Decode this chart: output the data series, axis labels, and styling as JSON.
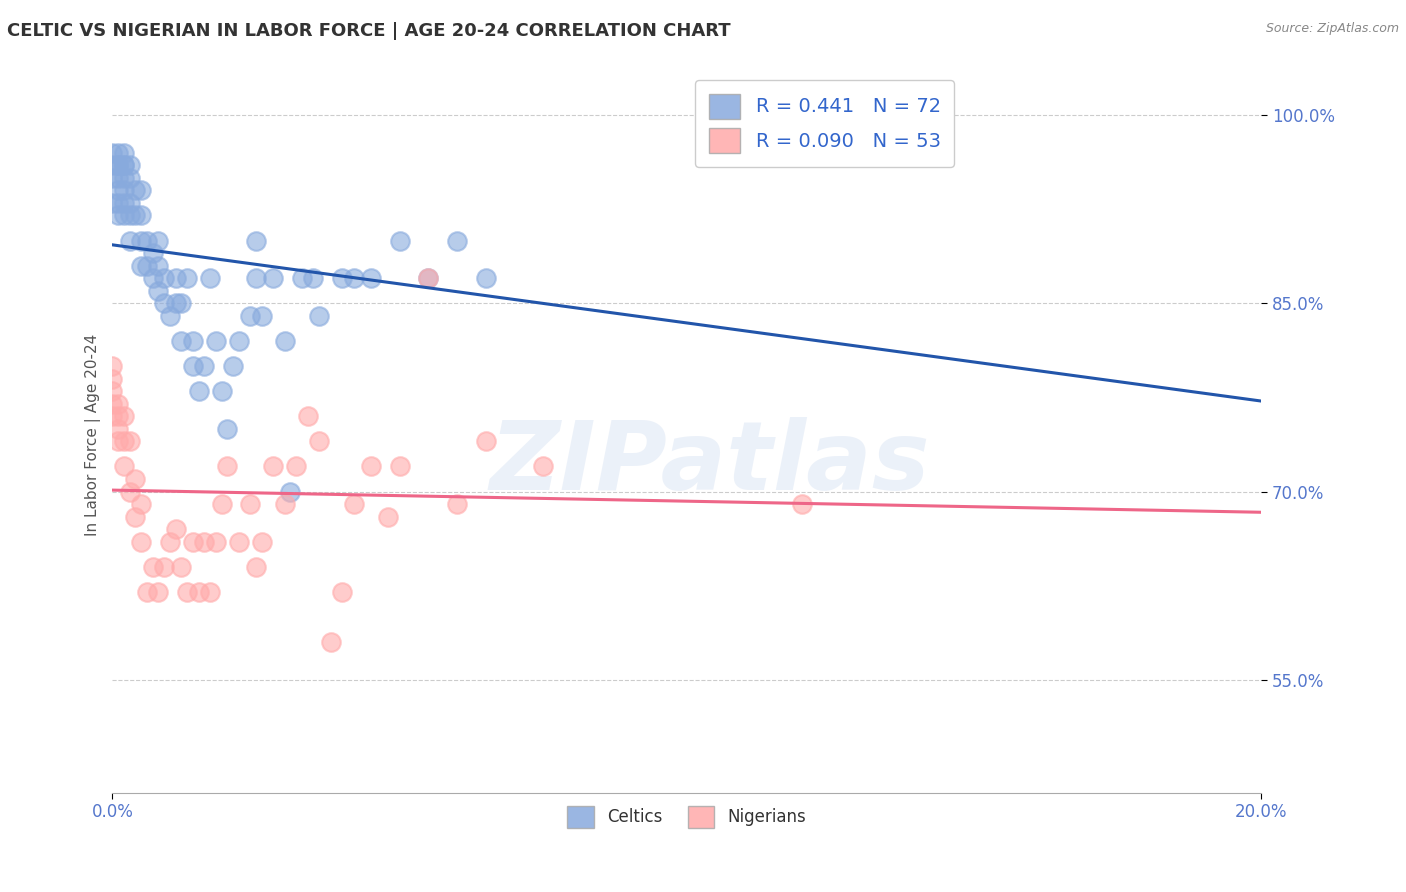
{
  "title": "CELTIC VS NIGERIAN IN LABOR FORCE | AGE 20-24 CORRELATION CHART",
  "source_text": "Source: ZipAtlas.com",
  "ylabel": "In Labor Force | Age 20-24",
  "xlim": [
    0.0,
    0.2
  ],
  "ylim": [
    0.46,
    1.03
  ],
  "yticks": [
    0.55,
    0.7,
    0.85,
    1.0
  ],
  "ytick_labels": [
    "55.0%",
    "70.0%",
    "85.0%",
    "100.0%"
  ],
  "xtick_left_label": "0.0%",
  "xtick_right_label": "20.0%",
  "celtics_color": "#88aadd",
  "nigerians_color": "#ffaaaa",
  "trend_celtic_color": "#2255aa",
  "trend_nigerian_color": "#ee6688",
  "legend_R_celtic": "R = 0.441",
  "legend_N_celtic": "N = 72",
  "legend_R_nigerian": "R = 0.090",
  "legend_N_nigerian": "N = 53",
  "celtics_x": [
    0.0,
    0.0,
    0.0,
    0.0,
    0.001,
    0.001,
    0.001,
    0.001,
    0.001,
    0.001,
    0.001,
    0.002,
    0.002,
    0.002,
    0.002,
    0.002,
    0.002,
    0.002,
    0.003,
    0.003,
    0.003,
    0.003,
    0.003,
    0.004,
    0.004,
    0.005,
    0.005,
    0.005,
    0.005,
    0.006,
    0.006,
    0.007,
    0.007,
    0.008,
    0.008,
    0.008,
    0.009,
    0.009,
    0.01,
    0.011,
    0.011,
    0.012,
    0.012,
    0.013,
    0.014,
    0.014,
    0.015,
    0.016,
    0.017,
    0.018,
    0.019,
    0.02,
    0.021,
    0.022,
    0.024,
    0.025,
    0.025,
    0.026,
    0.028,
    0.03,
    0.031,
    0.033,
    0.035,
    0.036,
    0.04,
    0.042,
    0.045,
    0.05,
    0.055,
    0.06,
    0.065,
    0.12
  ],
  "celtics_y": [
    0.93,
    0.95,
    0.96,
    0.97,
    0.92,
    0.93,
    0.94,
    0.95,
    0.96,
    0.96,
    0.97,
    0.92,
    0.93,
    0.94,
    0.95,
    0.96,
    0.96,
    0.97,
    0.9,
    0.92,
    0.93,
    0.95,
    0.96,
    0.92,
    0.94,
    0.88,
    0.9,
    0.92,
    0.94,
    0.88,
    0.9,
    0.87,
    0.89,
    0.86,
    0.88,
    0.9,
    0.85,
    0.87,
    0.84,
    0.85,
    0.87,
    0.82,
    0.85,
    0.87,
    0.8,
    0.82,
    0.78,
    0.8,
    0.87,
    0.82,
    0.78,
    0.75,
    0.8,
    0.82,
    0.84,
    0.87,
    0.9,
    0.84,
    0.87,
    0.82,
    0.7,
    0.87,
    0.87,
    0.84,
    0.87,
    0.87,
    0.87,
    0.9,
    0.87,
    0.9,
    0.87,
    1.0
  ],
  "nigerians_x": [
    0.0,
    0.0,
    0.0,
    0.0,
    0.0,
    0.001,
    0.001,
    0.001,
    0.001,
    0.002,
    0.002,
    0.002,
    0.003,
    0.003,
    0.004,
    0.004,
    0.005,
    0.005,
    0.006,
    0.007,
    0.008,
    0.009,
    0.01,
    0.011,
    0.012,
    0.013,
    0.014,
    0.015,
    0.016,
    0.017,
    0.018,
    0.019,
    0.02,
    0.022,
    0.024,
    0.025,
    0.026,
    0.028,
    0.03,
    0.032,
    0.034,
    0.036,
    0.038,
    0.04,
    0.042,
    0.045,
    0.048,
    0.05,
    0.055,
    0.06,
    0.065,
    0.075,
    0.12
  ],
  "nigerians_y": [
    0.76,
    0.77,
    0.78,
    0.79,
    0.8,
    0.74,
    0.75,
    0.76,
    0.77,
    0.72,
    0.74,
    0.76,
    0.7,
    0.74,
    0.68,
    0.71,
    0.66,
    0.69,
    0.62,
    0.64,
    0.62,
    0.64,
    0.66,
    0.67,
    0.64,
    0.62,
    0.66,
    0.62,
    0.66,
    0.62,
    0.66,
    0.69,
    0.72,
    0.66,
    0.69,
    0.64,
    0.66,
    0.72,
    0.69,
    0.72,
    0.76,
    0.74,
    0.58,
    0.62,
    0.69,
    0.72,
    0.68,
    0.72,
    0.87,
    0.69,
    0.74,
    0.72,
    0.69
  ],
  "background_color": "#ffffff",
  "grid_color": "#cccccc",
  "title_color": "#333333",
  "title_fontsize": 13,
  "axis_label_color": "#555555",
  "watermark_text": "ZIPatlas",
  "watermark_color": "#c8d8ee",
  "watermark_fontsize": 70,
  "watermark_alpha": 0.35
}
